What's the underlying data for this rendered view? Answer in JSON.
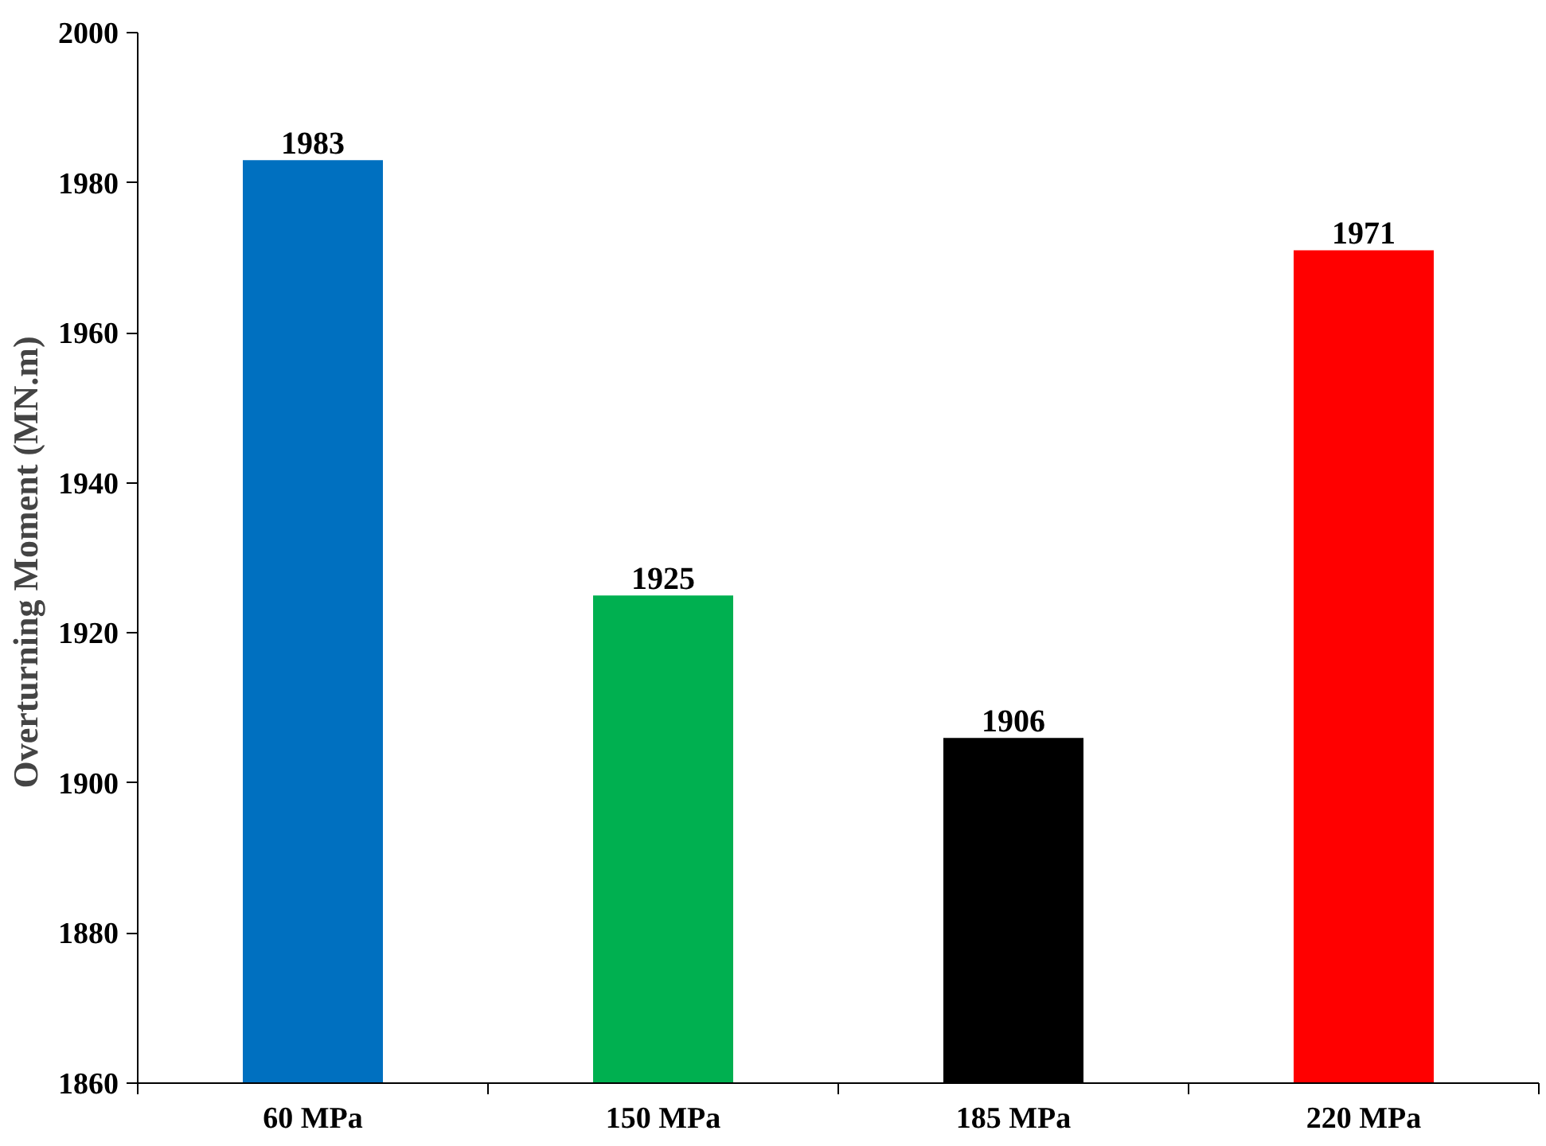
{
  "chart_data": {
    "type": "bar",
    "ylabel": "Overturning Moment  (MN.m)",
    "categories": [
      "60 MPa",
      "150 MPa",
      "185 MPa",
      "220 MPa"
    ],
    "values": [
      1983,
      1925,
      1906,
      1971
    ],
    "colors": [
      "#0070c0",
      "#00b050",
      "#000000",
      "#ff0000"
    ],
    "ylim": [
      1860,
      2000
    ],
    "yticks": [
      1860,
      1880,
      1900,
      1920,
      1940,
      1960,
      1980,
      2000
    ],
    "grid": false,
    "data_labels": true
  }
}
